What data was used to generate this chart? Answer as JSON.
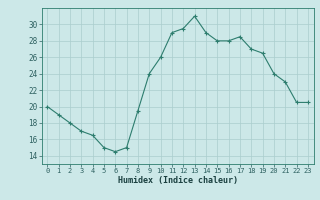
{
  "x": [
    0,
    1,
    2,
    3,
    4,
    5,
    6,
    7,
    8,
    9,
    10,
    11,
    12,
    13,
    14,
    15,
    16,
    17,
    18,
    19,
    20,
    21,
    22,
    23
  ],
  "y": [
    20,
    19,
    18,
    17,
    16.5,
    15,
    14.5,
    15,
    19.5,
    24,
    26,
    29,
    29.5,
    31,
    29,
    28,
    28,
    28.5,
    27,
    26.5,
    24,
    23,
    20.5,
    20.5
  ],
  "line_color": "#2d7d6e",
  "marker_color": "#2d7d6e",
  "bg_color": "#cce8e8",
  "grid_major_color": "#aacece",
  "xlabel": "Humidex (Indice chaleur)",
  "ylim": [
    13,
    32
  ],
  "xlim": [
    -0.5,
    23.5
  ],
  "yticks": [
    14,
    16,
    18,
    20,
    22,
    24,
    26,
    28,
    30
  ],
  "xticks": [
    0,
    1,
    2,
    3,
    4,
    5,
    6,
    7,
    8,
    9,
    10,
    11,
    12,
    13,
    14,
    15,
    16,
    17,
    18,
    19,
    20,
    21,
    22,
    23
  ]
}
